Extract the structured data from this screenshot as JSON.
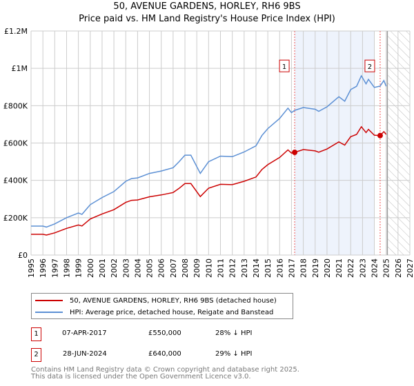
{
  "title_line1": "50, AVENUE GARDENS, HORLEY, RH6 9BS",
  "title_line2": "Price paid vs. HM Land Registry's House Price Index (HPI)",
  "legend": {
    "property": "50, AVENUE GARDENS, HORLEY, RH6 9BS (detached house)",
    "hpi": "HPI: Average price, detached house, Reigate and Banstead"
  },
  "transactions": [
    {
      "num": "1",
      "date": "07-APR-2017",
      "price": "£550,000",
      "diff": "28% ↓ HPI"
    },
    {
      "num": "2",
      "date": "28-JUN-2024",
      "price": "£640,000",
      "diff": "29% ↓ HPI"
    }
  ],
  "footer_line1": "Contains HM Land Registry data © Crown copyright and database right 2025.",
  "footer_line2": "This data is licensed under the Open Government Licence v3.0.",
  "colors": {
    "property": "#cc0000",
    "hpi": "#5b8fd4",
    "shade": "#eef3fc",
    "grid": "#cccccc"
  },
  "chart_data": {
    "type": "line",
    "title": "50, AVENUE GARDENS, HORLEY, RH6 9BS — Price paid vs. HM Land Registry's House Price Index (HPI)",
    "xlim": [
      1995,
      2027
    ],
    "ylim": [
      0,
      1200000
    ],
    "x_ticks": [
      "1995",
      "1996",
      "1997",
      "1998",
      "1999",
      "2000",
      "2001",
      "2002",
      "2003",
      "2004",
      "2005",
      "2006",
      "2007",
      "2008",
      "2009",
      "2010",
      "2011",
      "2012",
      "2013",
      "2014",
      "2015",
      "2016",
      "2017",
      "2018",
      "2019",
      "2020",
      "2021",
      "2022",
      "2023",
      "2024",
      "2025",
      "2026",
      "2027"
    ],
    "y_ticks": [
      {
        "v": 0,
        "label": "£0"
      },
      {
        "v": 200000,
        "label": "£200K"
      },
      {
        "v": 400000,
        "label": "£400K"
      },
      {
        "v": 600000,
        "label": "£600K"
      },
      {
        "v": 800000,
        "label": "£800K"
      },
      {
        "v": 1000000,
        "label": "£1M"
      },
      {
        "v": 1200000,
        "label": "£1.2M"
      }
    ],
    "grid": true,
    "x": [
      1995,
      1996,
      1996.3,
      1997,
      1998,
      1999,
      1999.3,
      2000,
      2001,
      2002,
      2003,
      2003.5,
      2004,
      2005,
      2006,
      2007,
      2007.5,
      2008,
      2008.5,
      2009.3,
      2010,
      2011,
      2012,
      2013,
      2014,
      2014.5,
      2015,
      2016,
      2016.7,
      2017,
      2017.27,
      2018,
      2019,
      2019.3,
      2020,
      2021,
      2021.5,
      2022,
      2022.5,
      2022.9,
      2023.3,
      2023.5,
      2024,
      2024.49,
      2024.8,
      2025
    ],
    "series": [
      {
        "name": "50, AVENUE GARDENS, HORLEY, RH6 9BS (detached house)",
        "color": "#cc0000",
        "values": [
          111000,
          111000,
          107000,
          119000,
          143000,
          161000,
          156000,
          193000,
          220000,
          243000,
          282000,
          293000,
          295000,
          312000,
          322000,
          335000,
          357000,
          383000,
          383000,
          313000,
          358000,
          379000,
          377000,
          395000,
          418000,
          458000,
          484000,
          523000,
          563000,
          546000,
          550000,
          565000,
          558000,
          551000,
          568000,
          606000,
          589000,
          634000,
          646000,
          687000,
          656000,
          673000,
          642000,
          640000,
          661000,
          646000
        ]
      },
      {
        "name": "HPI: Average price, detached house, Reigate and Banstead",
        "color": "#5b8fd4",
        "values": [
          155000,
          155000,
          150000,
          167000,
          200000,
          225000,
          218000,
          270000,
          308000,
          340000,
          395000,
          410000,
          413000,
          437000,
          450000,
          468000,
          500000,
          535000,
          535000,
          437000,
          500000,
          530000,
          527000,
          552000,
          585000,
          640000,
          677000,
          732000,
          787000,
          763000,
          775000,
          790000,
          781000,
          770000,
          794000,
          848000,
          824000,
          886000,
          904000,
          960000,
          917000,
          941000,
          898000,
          905000,
          935000,
          904000
        ]
      }
    ],
    "sales": [
      {
        "label": "1",
        "x": 2017.27,
        "y": 550000
      },
      {
        "label": "2",
        "x": 2024.49,
        "y": 640000
      }
    ],
    "shaded_range": [
      2017.27,
      2024.0
    ],
    "forecast_hatch_from": 2025.1,
    "legend_position": "below"
  }
}
